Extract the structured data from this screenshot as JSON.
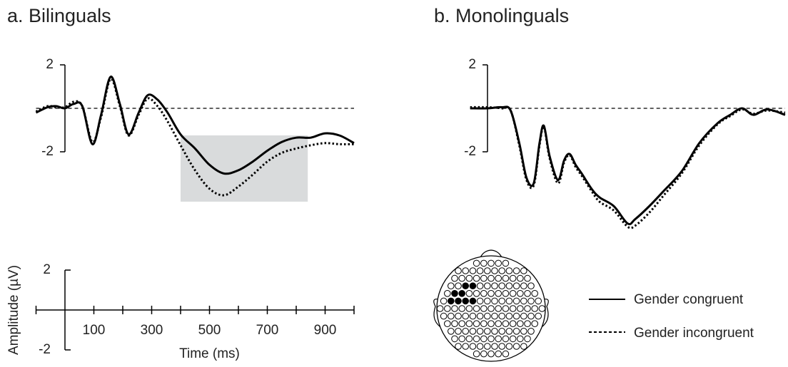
{
  "chart_data": [
    {
      "type": "line",
      "title": "a. Bilinguals",
      "x": [
        -100,
        -60,
        -30,
        0,
        30,
        60,
        95,
        125,
        158,
        190,
        220,
        255,
        286,
        320,
        355,
        400,
        450,
        500,
        550,
        600,
        650,
        700,
        750,
        800,
        850,
        900,
        950,
        1000
      ],
      "series": [
        {
          "name": "Gender congruent",
          "style": "solid",
          "color": "#000000",
          "values": [
            -0.2,
            0.05,
            0.1,
            0,
            0.2,
            0.1,
            -1.65,
            -0.3,
            1.45,
            0.2,
            -1.2,
            -0.2,
            0.6,
            0.4,
            -0.2,
            -1.2,
            -1.85,
            -2.6,
            -3.0,
            -2.85,
            -2.45,
            -1.95,
            -1.55,
            -1.35,
            -1.35,
            -1.15,
            -1.25,
            -1.6
          ]
        },
        {
          "name": "Gender incongruent",
          "style": "dotted",
          "color": "#000000",
          "values": [
            -0.15,
            0.1,
            0.05,
            0.05,
            0.3,
            0.1,
            -1.55,
            -0.4,
            1.35,
            0.1,
            -1.25,
            -0.3,
            0.45,
            0.1,
            -0.6,
            -1.7,
            -2.85,
            -3.7,
            -4.0,
            -3.6,
            -3.05,
            -2.45,
            -2.05,
            -1.85,
            -1.7,
            -1.6,
            -1.65,
            -1.65
          ]
        }
      ],
      "highlight": [
        400,
        840
      ],
      "xlim": [
        -100,
        1000
      ],
      "ylim": [
        -6,
        3
      ],
      "yticks": [
        2,
        -2
      ],
      "zero_line": true
    },
    {
      "type": "line",
      "title": "b. Monolinguals",
      "x": [
        -60,
        0,
        50,
        80,
        110,
        135,
        160,
        180,
        195,
        215,
        244,
        265,
        284,
        305,
        326,
        360,
        388,
        437,
        485,
        511,
        560,
        610,
        672,
        733,
        795,
        840,
        881,
        920,
        968,
        1030
      ],
      "series": [
        {
          "style": "solid",
          "color": "#000000",
          "values": [
            0,
            0,
            0.05,
            -0.1,
            -1.6,
            -3.2,
            -3.45,
            -1.6,
            -0.8,
            -2.2,
            -3.3,
            -2.4,
            -2.1,
            -2.6,
            -3.0,
            -3.7,
            -4.1,
            -4.5,
            -5.3,
            -5.1,
            -4.5,
            -3.8,
            -2.9,
            -1.6,
            -0.7,
            -0.3,
            0,
            -0.3,
            -0.05,
            -0.3
          ]
        },
        {
          "style": "dotted",
          "color": "#000000",
          "values": [
            0.05,
            0.05,
            0,
            -0.1,
            -1.7,
            -3.3,
            -3.55,
            -1.7,
            -0.85,
            -2.3,
            -3.45,
            -2.5,
            -2.15,
            -2.7,
            -3.1,
            -3.8,
            -4.3,
            -4.7,
            -5.45,
            -5.4,
            -4.8,
            -4.0,
            -3.0,
            -1.7,
            -0.75,
            -0.35,
            -0.05,
            -0.25,
            -0.1,
            -0.2
          ]
        }
      ],
      "xlim": [
        -100,
        1030
      ],
      "ylim": [
        -6,
        3
      ],
      "yticks": [
        2,
        -2
      ],
      "zero_line": true
    },
    {
      "type": "scale",
      "xlabel": "Time (ms)",
      "ylabel": "Amplitude (µV)",
      "xlim": [
        -100,
        1000
      ],
      "ylim": [
        -2.5,
        2.5
      ],
      "xticks": [
        100,
        300,
        500,
        700,
        900
      ],
      "xminor": [
        -100,
        200,
        400,
        600,
        800,
        1000
      ],
      "yticks": [
        2,
        -2
      ]
    }
  ]
}
